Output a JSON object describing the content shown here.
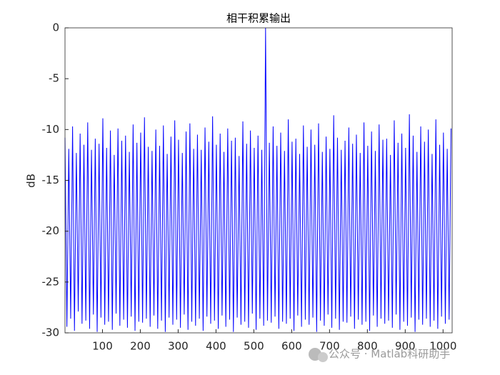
{
  "chart_data": {
    "type": "line",
    "title": "相干积累输出",
    "y_label": "dB",
    "watermark": "公众号 · Matlab科研助手",
    "xlim": [
      1,
      1024
    ],
    "ylim": [
      -30,
      0
    ],
    "xticks": [
      100,
      200,
      300,
      400,
      500,
      600,
      700,
      800,
      900,
      1000
    ],
    "yticks": [
      -30,
      -25,
      -20,
      -15,
      -10,
      -5,
      0
    ],
    "x": [
      1,
      6,
      11,
      16,
      21,
      26,
      31,
      36,
      41,
      46,
      51,
      56,
      61,
      66,
      71,
      76,
      81,
      86,
      91,
      96,
      101,
      106,
      111,
      116,
      121,
      126,
      131,
      136,
      141,
      146,
      151,
      156,
      161,
      166,
      171,
      176,
      181,
      186,
      191,
      196,
      201,
      206,
      211,
      216,
      221,
      226,
      231,
      236,
      241,
      246,
      251,
      256,
      261,
      266,
      271,
      276,
      281,
      286,
      291,
      296,
      301,
      306,
      311,
      316,
      321,
      326,
      331,
      336,
      341,
      346,
      351,
      356,
      361,
      366,
      371,
      376,
      381,
      386,
      391,
      396,
      401,
      406,
      411,
      416,
      421,
      426,
      431,
      436,
      441,
      446,
      451,
      456,
      461,
      466,
      471,
      476,
      481,
      486,
      491,
      496,
      501,
      506,
      511,
      516,
      521,
      526,
      531,
      536,
      541,
      546,
      551,
      556,
      561,
      566,
      571,
      576,
      581,
      586,
      591,
      596,
      601,
      606,
      611,
      616,
      621,
      626,
      631,
      636,
      641,
      646,
      651,
      656,
      661,
      666,
      671,
      676,
      681,
      686,
      691,
      696,
      701,
      706,
      711,
      716,
      721,
      726,
      731,
      736,
      741,
      746,
      751,
      756,
      761,
      766,
      771,
      776,
      781,
      786,
      791,
      796,
      801,
      806,
      811,
      816,
      821,
      826,
      831,
      836,
      841,
      846,
      851,
      856,
      861,
      866,
      871,
      876,
      881,
      886,
      891,
      896,
      901,
      906,
      911,
      916,
      921,
      926,
      931,
      936,
      941,
      946,
      951,
      956,
      961,
      966,
      971,
      976,
      981,
      986,
      991,
      996,
      1001,
      1006,
      1011,
      1016,
      1021
    ],
    "series": [
      {
        "color": "#0000ff",
        "values": [
          -10.8,
          -29.4,
          -11.9,
          -28.6,
          -9.7,
          -29.8,
          -12.3,
          -27.9,
          -10.4,
          -29.1,
          -11.5,
          -28.8,
          -9.3,
          -29.6,
          -12.0,
          -28.2,
          -10.9,
          -29.9,
          -11.4,
          -28.5,
          -8.9,
          -29.2,
          -11.8,
          -28.9,
          -10.1,
          -29.7,
          -12.5,
          -28.1,
          -9.9,
          -29.3,
          -11.1,
          -28.7,
          -10.6,
          -29.5,
          -12.2,
          -28.4,
          -9.5,
          -29.8,
          -11.3,
          -28.9,
          -10.3,
          -29.0,
          -8.8,
          -28.6,
          -11.7,
          -29.4,
          -12.1,
          -28.3,
          -10.0,
          -29.6,
          -11.6,
          -28.8,
          -9.6,
          -29.9,
          -12.4,
          -28.5,
          -10.7,
          -29.2,
          -9.1,
          -28.7,
          -11.0,
          -29.5,
          -12.3,
          -28.2,
          -10.2,
          -29.7,
          -9.4,
          -28.9,
          -11.9,
          -29.3,
          -10.5,
          -28.6,
          -12.0,
          -29.8,
          -9.8,
          -28.4,
          -11.2,
          -29.1,
          -8.7,
          -28.8,
          -11.5,
          -29.6,
          -10.4,
          -28.3,
          -12.2,
          -29.4,
          -9.9,
          -28.7,
          -11.1,
          -29.9,
          -10.8,
          -28.5,
          -12.6,
          -29.2,
          -9.2,
          -28.9,
          -11.4,
          -29.5,
          -10.1,
          -28.1,
          -11.8,
          -29.7,
          -10.6,
          -28.6,
          -12.0,
          -29.3,
          0,
          -28.8,
          -11.3,
          -29.0,
          -9.7,
          -28.4,
          -11.6,
          -29.6,
          -10.3,
          -28.9,
          -12.1,
          -29.1,
          -9.0,
          -28.6,
          -11.2,
          -29.8,
          -10.9,
          -28.3,
          -12.4,
          -29.4,
          -9.6,
          -28.7,
          -11.7,
          -29.2,
          -10.0,
          -28.5,
          -11.5,
          -29.9,
          -9.4,
          -28.8,
          -12.2,
          -29.3,
          -10.7,
          -28.2,
          -11.9,
          -29.5,
          -8.6,
          -28.6,
          -10.8,
          -29.7,
          -12.0,
          -28.9,
          -11.1,
          -29.0,
          -9.8,
          -28.4,
          -11.4,
          -29.6,
          -10.5,
          -28.7,
          -12.3,
          -29.2,
          -9.3,
          -28.9,
          -11.6,
          -29.8,
          -10.2,
          -28.3,
          -12.1,
          -29.4,
          -9.5,
          -28.6,
          -11.0,
          -29.1,
          -10.9,
          -28.8,
          -12.5,
          -29.5,
          -9.1,
          -28.2,
          -11.3,
          -29.7,
          -10.4,
          -28.9,
          -11.8,
          -29.3,
          -8.5,
          -28.5,
          -10.6,
          -29.9,
          -12.2,
          -28.7,
          -9.7,
          -29.2,
          -11.2,
          -28.6,
          -10.0,
          -29.4,
          -12.4,
          -28.8,
          -9.0,
          -29.6,
          -11.5,
          -28.4,
          -10.3,
          -29.1,
          -11.9,
          -28.7,
          -9.9
        ]
      }
    ]
  }
}
